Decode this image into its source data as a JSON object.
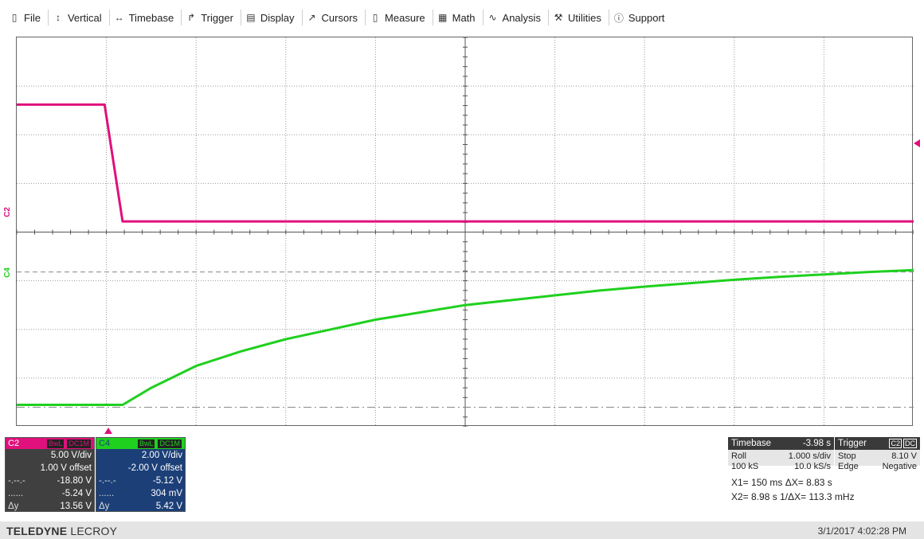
{
  "menu": [
    {
      "label": "File",
      "icon": "file-icon",
      "glyph": "▯"
    },
    {
      "label": "Vertical",
      "icon": "vertical-arrows-icon",
      "glyph": "↕"
    },
    {
      "label": "Timebase",
      "icon": "horizontal-arrows-icon",
      "glyph": "↔"
    },
    {
      "label": "Trigger",
      "icon": "trigger-icon",
      "glyph": "↱"
    },
    {
      "label": "Display",
      "icon": "display-icon",
      "glyph": "▤"
    },
    {
      "label": "Cursors",
      "icon": "cursors-icon",
      "glyph": "↗"
    },
    {
      "label": "Measure",
      "icon": "measure-icon",
      "glyph": "▯"
    },
    {
      "label": "Math",
      "icon": "math-icon",
      "glyph": "▦"
    },
    {
      "label": "Analysis",
      "icon": "analysis-icon",
      "glyph": "∿"
    },
    {
      "label": "Utilities",
      "icon": "utilities-icon",
      "glyph": "⚒"
    },
    {
      "label": "Support",
      "icon": "info-icon",
      "glyph": "ⓘ"
    }
  ],
  "markers": {
    "c2": "C2",
    "c4": "C4"
  },
  "c2": {
    "name": "C2",
    "tag_bwl": "BwL",
    "tag_dc": "DC1M",
    "vdiv": "5.00 V/div",
    "offset": "1.00 V offset",
    "cursor1_label": "-.--.-",
    "cursor1": "-18.80 V",
    "cursor2_label": "......",
    "cursor2": "-5.24 V",
    "delta_label": "Δy",
    "delta": "13.56 V",
    "color": "#e0107c"
  },
  "c4": {
    "name": "C4",
    "tag_bwl": "BwL",
    "tag_dc": "DC1M",
    "vdiv": "2.00 V/div",
    "offset": "-2.00 V offset",
    "cursor1_label": "-.--.-",
    "cursor1": "-5.12 V",
    "cursor2_label": "......",
    "cursor2": "304 mV",
    "delta_label": "Δy",
    "delta": "5.42 V",
    "color": "#1fd01f"
  },
  "timebase": {
    "title": "Timebase",
    "delay": "-3.98 s",
    "mode": "Roll",
    "scale": "1.000 s/div",
    "samples": "100 kS",
    "rate": "10.0 kS/s"
  },
  "trigger": {
    "title": "Trigger",
    "source": "C2",
    "coupling": "DC",
    "state": "Stop",
    "level": "8.10 V",
    "type": "Edge",
    "slope": "Negative"
  },
  "cursors": {
    "x1": "X1= 150 ms",
    "dx": "ΔX=   8.83 s",
    "x2": "X2= 8.98 s",
    "inv_dx": "1/ΔX= 113.3 mHz"
  },
  "footer": {
    "brand_bold": "TELEDYNE",
    "brand_light": "LECROY",
    "datetime": "3/1/2017 4:02:28 PM"
  },
  "chart_data": {
    "type": "line",
    "title": "",
    "xlabel": "",
    "ylabel": "",
    "x_unit": "div",
    "y_unit": "div",
    "xlim": [
      0,
      10
    ],
    "ylim": [
      -4,
      4
    ],
    "grid": true,
    "series": [
      {
        "name": "C2",
        "color": "#e0107c",
        "points": [
          [
            0,
            2.62
          ],
          [
            0.98,
            2.62
          ],
          [
            1.18,
            0.22
          ],
          [
            10,
            0.22
          ]
        ]
      },
      {
        "name": "C4",
        "color": "#1fd01f",
        "points": [
          [
            0,
            -3.55
          ],
          [
            1.18,
            -3.55
          ],
          [
            1.5,
            -3.2
          ],
          [
            2,
            -2.75
          ],
          [
            2.5,
            -2.45
          ],
          [
            3,
            -2.2
          ],
          [
            3.5,
            -2.0
          ],
          [
            4,
            -1.8
          ],
          [
            4.5,
            -1.65
          ],
          [
            5,
            -1.5
          ],
          [
            5.5,
            -1.4
          ],
          [
            6,
            -1.3
          ],
          [
            6.5,
            -1.2
          ],
          [
            7,
            -1.12
          ],
          [
            7.5,
            -1.05
          ],
          [
            8,
            -0.98
          ],
          [
            8.5,
            -0.92
          ],
          [
            9,
            -0.87
          ],
          [
            9.5,
            -0.82
          ],
          [
            10,
            -0.78
          ]
        ]
      }
    ],
    "reference_lines": [
      {
        "y": -0.82,
        "style": "dashed"
      },
      {
        "y": -3.6,
        "style": "dash-dot"
      }
    ]
  }
}
